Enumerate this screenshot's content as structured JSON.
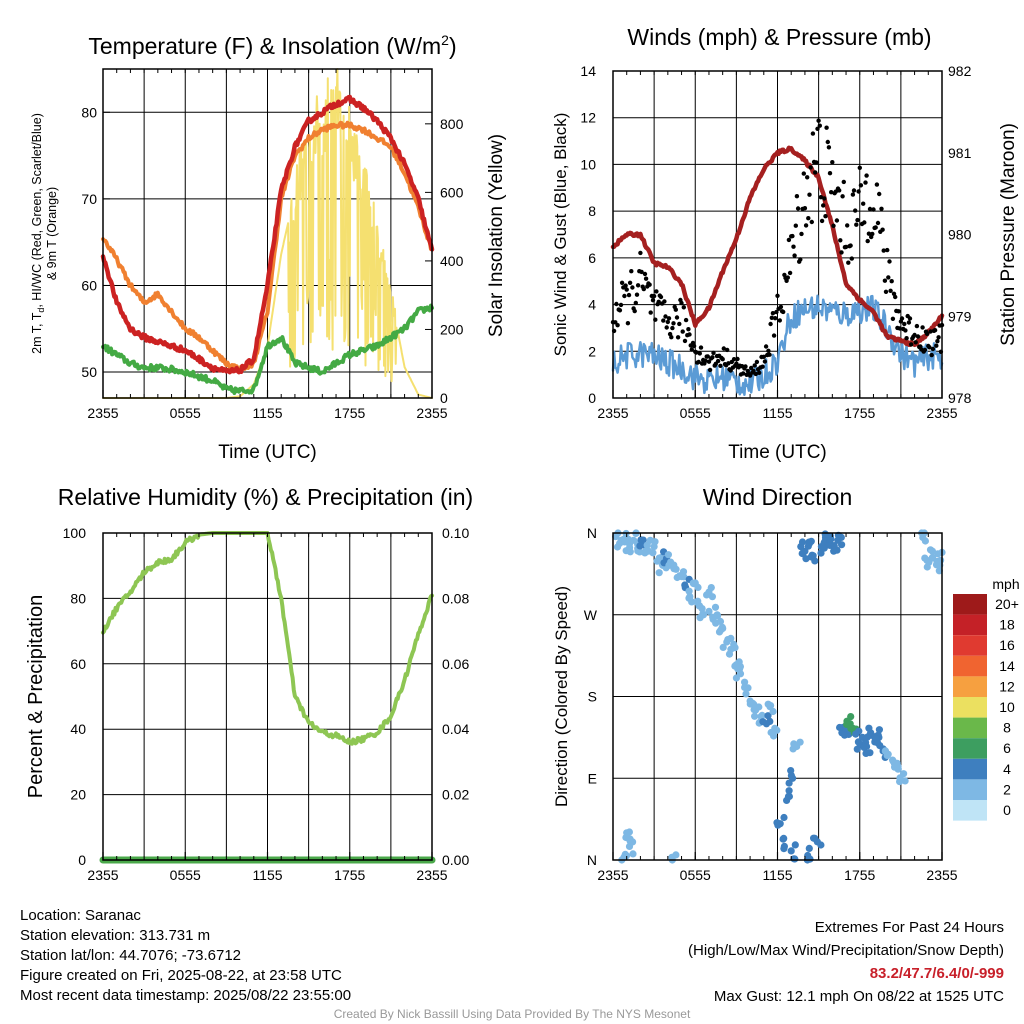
{
  "colors": {
    "temp": "#cc2222",
    "heat_index": "#c8302a",
    "dewpoint": "#44aa44",
    "temp9m": "#f08030",
    "solar": "#f5e070",
    "gust": "#000000",
    "wind": "#5b9bd5",
    "pressure": "#a52020",
    "rh": "#8ec653",
    "precip": "#4aa84a"
  },
  "charts": [
    {
      "id": "temp",
      "title_parts": [
        "Temperature (F) & Insolation (W/m",
        "2",
        ")"
      ],
      "ylabel_lines": [
        "2m T, T",
        "d",
        ", HI/WC (Red, Green, Scarlet/Blue)",
        "& 9m T (Orange)"
      ],
      "ylabel_right": "Solar Insolation (Yellow)",
      "xlabel": "Time (UTC)",
      "xticks": [
        "2355",
        "0555",
        "1155",
        "1755",
        "2355"
      ],
      "yticks_left": [
        "50",
        "60",
        "70",
        "80"
      ],
      "yticks_right": [
        "0",
        "200",
        "400",
        "600",
        "800"
      ]
    },
    {
      "id": "wind",
      "title": "Winds (mph) & Pressure (mb)",
      "ylabel_left": "Sonic Wind & Gust (Blue, Black)",
      "ylabel_right": "Station Pressure (Maroon)",
      "xlabel": "Time (UTC)",
      "xticks": [
        "2355",
        "0555",
        "1155",
        "1755",
        "2355"
      ],
      "yticks_left": [
        "0",
        "2",
        "4",
        "6",
        "8",
        "10",
        "12",
        "14"
      ],
      "yticks_right": [
        "978",
        "979",
        "980",
        "981",
        "982"
      ]
    },
    {
      "id": "rh",
      "title": "Relative Humidity (%) & Precipitation (in)",
      "ylabel_left": "Percent & Precipitation",
      "xticks": [
        "2355",
        "0555",
        "1155",
        "1755",
        "2355"
      ],
      "yticks_left": [
        "0",
        "20",
        "40",
        "60",
        "80",
        "100"
      ],
      "yticks_right": [
        "0.00",
        "0.02",
        "0.04",
        "0.06",
        "0.08",
        "0.10"
      ]
    },
    {
      "id": "dir",
      "title": "Wind Direction",
      "ylabel_left": "Direction (Colored By Speed)",
      "xticks": [
        "2355",
        "0555",
        "1155",
        "1755",
        "2355"
      ],
      "yticks_left": [
        "N",
        "E",
        "S",
        "W",
        "N"
      ],
      "legend_title": "mph",
      "legend_labels": [
        "20+",
        "18",
        "16",
        "14",
        "12",
        "10",
        "8",
        "6",
        "4",
        "2",
        "0"
      ],
      "legend_colors": [
        "#9e1a1a",
        "#c42127",
        "#e03a30",
        "#f06430",
        "#f6a040",
        "#ebe060",
        "#6ab84a",
        "#3d9e60",
        "#3e7fbf",
        "#7eb8e4",
        "#bfe4f6"
      ]
    }
  ],
  "chart_data": [
    {
      "type": "line",
      "x_unit": "hours since 2355 UTC",
      "x": [
        0,
        1,
        2,
        3,
        4,
        5,
        6,
        7,
        8,
        9,
        10,
        11,
        12,
        13,
        14,
        15,
        16,
        17,
        18,
        19,
        20,
        21,
        22,
        23,
        24
      ],
      "xlim": [
        0,
        24
      ],
      "ylim": [
        47,
        85
      ],
      "y2lim": [
        0,
        960
      ],
      "series": [
        {
          "name": "Temperature (Red)",
          "axis": "left",
          "values": [
            63.5,
            58,
            55,
            54,
            53.5,
            53,
            52.5,
            51.5,
            50.5,
            50,
            50.2,
            51.5,
            60,
            71,
            76,
            79,
            80,
            81,
            81.5,
            80.5,
            79,
            77,
            74,
            70,
            64
          ]
        },
        {
          "name": "Dewpoint (Green)",
          "axis": "left",
          "values": [
            53,
            52,
            51,
            50.5,
            50.5,
            50.3,
            50,
            49.5,
            49,
            48,
            47.8,
            48,
            53,
            54,
            51,
            50.5,
            50,
            51,
            52,
            52.5,
            53,
            54,
            55,
            57,
            57.5
          ]
        },
        {
          "name": "9m T (Orange)",
          "axis": "left",
          "values": [
            65.5,
            63,
            60,
            58,
            59,
            57,
            55,
            54,
            52.5,
            51,
            50.3,
            51,
            57,
            70,
            75,
            77,
            78,
            78.5,
            78.5,
            78,
            77,
            76,
            73,
            69,
            64
          ]
        },
        {
          "name": "Solar Insolation (Yellow)",
          "axis": "right",
          "values": [
            0,
            0,
            0,
            0,
            0,
            0,
            0,
            0,
            0,
            0,
            5,
            40,
            150,
            420,
            600,
            780,
            820,
            900,
            780,
            650,
            500,
            300,
            90,
            10,
            0
          ]
        }
      ]
    },
    {
      "type": "line",
      "x_unit": "hours since 2355 UTC",
      "x": [
        0,
        1,
        2,
        3,
        4,
        5,
        6,
        7,
        8,
        9,
        10,
        11,
        12,
        13,
        14,
        15,
        16,
        17,
        18,
        19,
        20,
        21,
        22,
        23,
        24
      ],
      "xlim": [
        0,
        24
      ],
      "ylim": [
        0,
        14
      ],
      "y2lim": [
        978,
        982
      ],
      "series": [
        {
          "name": "Sonic Wind (Blue)",
          "axis": "left",
          "values": [
            1.5,
            1.8,
            1.9,
            1.8,
            1.5,
            1.3,
            0.9,
            0.7,
            0.9,
            0.7,
            0.6,
            1.0,
            1.6,
            3.5,
            3.8,
            3.9,
            3.7,
            3.6,
            3.8,
            3.8,
            3.0,
            1.9,
            1.5,
            1.8,
            1.7
          ]
        },
        {
          "name": "Gust (Black)",
          "axis": "left",
          "values": [
            3.5,
            4.2,
            5.0,
            3.8,
            3.2,
            3.4,
            2.1,
            1.5,
            1.8,
            1.4,
            1.0,
            1.6,
            3.6,
            6.0,
            8.7,
            10.2,
            8.8,
            7.2,
            7.9,
            9.3,
            5.1,
            3.2,
            2.8,
            2.4,
            2.5
          ]
        },
        {
          "name": "Station Pressure (Maroon)",
          "axis": "right",
          "values": [
            979.85,
            980.0,
            980.0,
            979.65,
            979.6,
            979.4,
            978.9,
            979.1,
            979.55,
            979.95,
            980.45,
            980.8,
            981.0,
            981.05,
            980.9,
            980.7,
            980.1,
            979.4,
            979.2,
            979.05,
            978.75,
            978.7,
            978.65,
            978.8,
            979.0
          ]
        }
      ]
    },
    {
      "type": "line",
      "x_unit": "hours since 2355 UTC",
      "x": [
        0,
        1,
        2,
        3,
        4,
        5,
        6,
        7,
        8,
        9,
        10,
        11,
        12,
        13,
        14,
        15,
        16,
        17,
        18,
        19,
        20,
        21,
        22,
        23,
        24
      ],
      "xlim": [
        0,
        24
      ],
      "ylim": [
        0,
        100
      ],
      "y2lim": [
        0,
        0.1
      ],
      "series": [
        {
          "name": "Relative Humidity",
          "axis": "left",
          "values": [
            70,
            77,
            82,
            88,
            91,
            92,
            97,
            99.5,
            100,
            100,
            100,
            100,
            100,
            80,
            50,
            42,
            39,
            38,
            36,
            37,
            39,
            44,
            55,
            69,
            81
          ]
        },
        {
          "name": "Precipitation",
          "axis": "right",
          "values": [
            0,
            0,
            0,
            0,
            0,
            0,
            0,
            0,
            0,
            0,
            0,
            0,
            0,
            0,
            0,
            0,
            0,
            0,
            0,
            0,
            0,
            0,
            0,
            0,
            0
          ]
        }
      ]
    },
    {
      "type": "scatter",
      "x_unit": "hours since 2355 UTC",
      "xlim": [
        0,
        24
      ],
      "ylim": [
        0,
        360
      ],
      "y_unit": "degrees (N=0/360, E=90, S=180, W=270)",
      "points": [
        {
          "x": 0.2,
          "y": 356,
          "s": 2
        },
        {
          "x": 0.6,
          "y": 352,
          "s": 2
        },
        {
          "x": 0.9,
          "y": 354,
          "s": 2
        },
        {
          "x": 1.2,
          "y": 348,
          "s": 1
        },
        {
          "x": 1.5,
          "y": 352,
          "s": 1
        },
        {
          "x": 1.8,
          "y": 343,
          "s": 2
        },
        {
          "x": 2.2,
          "y": 347,
          "s": 3
        },
        {
          "x": 2.6,
          "y": 340,
          "s": 2
        },
        {
          "x": 3.0,
          "y": 345,
          "s": 2
        },
        {
          "x": 3.3,
          "y": 330,
          "s": 2
        },
        {
          "x": 3.6,
          "y": 325,
          "s": 2
        },
        {
          "x": 3.9,
          "y": 332,
          "s": 3
        },
        {
          "x": 4.2,
          "y": 328,
          "s": 2
        },
        {
          "x": 4.6,
          "y": 320,
          "s": 2
        },
        {
          "x": 5.0,
          "y": 312,
          "s": 1
        },
        {
          "x": 5.3,
          "y": 300,
          "s": 3
        },
        {
          "x": 5.6,
          "y": 290,
          "s": 2
        },
        {
          "x": 6.0,
          "y": 305,
          "s": 1
        },
        {
          "x": 6.3,
          "y": 280,
          "s": 2
        },
        {
          "x": 6.6,
          "y": 270,
          "s": 1
        },
        {
          "x": 7.0,
          "y": 295,
          "s": 1
        },
        {
          "x": 7.3,
          "y": 265,
          "s": 1
        },
        {
          "x": 7.6,
          "y": 270,
          "s": 1
        },
        {
          "x": 8.0,
          "y": 255,
          "s": 1
        },
        {
          "x": 8.3,
          "y": 240,
          "s": 1
        },
        {
          "x": 8.6,
          "y": 232,
          "s": 1
        },
        {
          "x": 9.0,
          "y": 215,
          "s": 1
        },
        {
          "x": 9.3,
          "y": 205,
          "s": 1
        },
        {
          "x": 9.6,
          "y": 190,
          "s": 1
        },
        {
          "x": 10.0,
          "y": 175,
          "s": 2
        },
        {
          "x": 10.4,
          "y": 165,
          "s": 2
        },
        {
          "x": 10.8,
          "y": 158,
          "s": 2
        },
        {
          "x": 11.2,
          "y": 150,
          "s": 3
        },
        {
          "x": 11.5,
          "y": 170,
          "s": 2
        },
        {
          "x": 11.8,
          "y": 145,
          "s": 1
        },
        {
          "x": 12.2,
          "y": 40,
          "s": 3
        },
        {
          "x": 12.5,
          "y": 15,
          "s": 4
        },
        {
          "x": 12.8,
          "y": 70,
          "s": 4
        },
        {
          "x": 13.1,
          "y": 90,
          "s": 3
        },
        {
          "x": 13.4,
          "y": 125,
          "s": 2
        },
        {
          "x": 13.7,
          "y": 345,
          "s": 4
        },
        {
          "x": 14.0,
          "y": 340,
          "s": 4
        },
        {
          "x": 14.3,
          "y": 350,
          "s": 4
        },
        {
          "x": 14.6,
          "y": 335,
          "s": 3
        },
        {
          "x": 14.9,
          "y": 20,
          "s": 4
        },
        {
          "x": 15.2,
          "y": 345,
          "s": 4
        },
        {
          "x": 15.5,
          "y": 355,
          "s": 4
        },
        {
          "x": 15.8,
          "y": 350,
          "s": 4
        },
        {
          "x": 16.1,
          "y": 340,
          "s": 3
        },
        {
          "x": 16.4,
          "y": 352,
          "s": 4
        },
        {
          "x": 16.7,
          "y": 140,
          "s": 3
        },
        {
          "x": 17.0,
          "y": 145,
          "s": 4
        },
        {
          "x": 17.3,
          "y": 150,
          "s": 6
        },
        {
          "x": 17.6,
          "y": 140,
          "s": 6
        },
        {
          "x": 17.9,
          "y": 130,
          "s": 3
        },
        {
          "x": 18.2,
          "y": 135,
          "s": 4
        },
        {
          "x": 18.5,
          "y": 125,
          "s": 3
        },
        {
          "x": 18.8,
          "y": 140,
          "s": 3
        },
        {
          "x": 19.1,
          "y": 130,
          "s": 3
        },
        {
          "x": 19.4,
          "y": 135,
          "s": 3
        },
        {
          "x": 19.7,
          "y": 120,
          "s": 3
        },
        {
          "x": 20.0,
          "y": 115,
          "s": 2
        },
        {
          "x": 20.4,
          "y": 110,
          "s": 2
        },
        {
          "x": 20.8,
          "y": 100,
          "s": 1
        },
        {
          "x": 21.2,
          "y": 95,
          "s": 1
        },
        {
          "x": 22.6,
          "y": 355,
          "s": 1
        },
        {
          "x": 22.9,
          "y": 330,
          "s": 2
        },
        {
          "x": 23.3,
          "y": 340,
          "s": 1
        },
        {
          "x": 23.6,
          "y": 325,
          "s": 2
        },
        {
          "x": 23.9,
          "y": 330,
          "s": 2
        },
        {
          "x": 1.0,
          "y": 30,
          "s": 1
        },
        {
          "x": 1.2,
          "y": 15,
          "s": 1
        },
        {
          "x": 0.8,
          "y": 3,
          "s": 1
        },
        {
          "x": 4.3,
          "y": 3,
          "s": 1
        },
        {
          "x": 14.2,
          "y": 5,
          "s": 4
        },
        {
          "x": 13.0,
          "y": 10,
          "s": 4
        }
      ]
    }
  ],
  "info": {
    "location": "Location: Saranac",
    "elevation": "Station elevation: 313.731 m",
    "latlon": "Station lat/lon: 44.7076; -73.6712",
    "created": "Figure created on Fri, 2025-08-22, at 23:58 UTC",
    "recent": "Most recent data timestamp: 2025/08/22 23:55:00"
  },
  "extremes": {
    "title": "Extremes For Past 24 Hours",
    "subtitle": "(High/Low/Max Wind/Precipitation/Snow Depth)",
    "values": "83.2/47.7/6.4/0/-999",
    "max_gust": "Max Gust: 12.1 mph On 08/22 at 1525 UTC"
  },
  "credit": "Created By Nick Bassill Using Data Provided By The NYS Mesonet"
}
